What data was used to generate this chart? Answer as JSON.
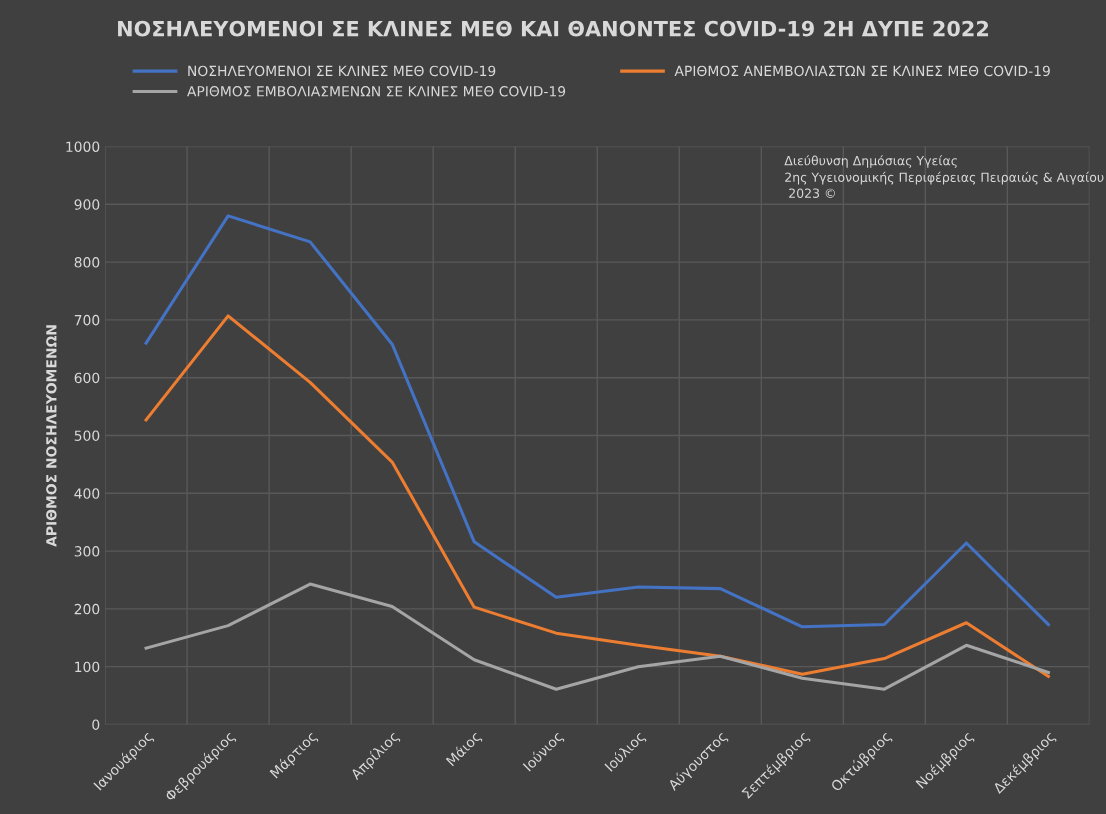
{
  "chart_data": {
    "type": "line",
    "title": "ΝΟΣΗΛΕΥΟΜΕΝΟΙ ΣΕ ΚΛΙΝΕΣ ΜΕΘ ΚΑΙ ΘΑΝΟΝΤΕΣ COVID-19 2Η ΔΥΠΕ 2022",
    "ylabel": "ΑΡΙΘΜΟΣ ΝΟΣΗΛΕΥΟΜΕΝΩΝ",
    "annotations": [
      "Διεύθυνση Δημόσιας Υγείας\n2ης Υγειονομικής Περιφέρειας Πειραιώς & Αιγαίου\n 2023 ©"
    ],
    "categories": [
      "Ιανουάριος",
      "Φεβρουάριος",
      "Μάρτιος",
      "Απρίλιος",
      "Μάιος",
      "Ιούνιος",
      "Ιούλιος",
      "Αύγουστος",
      "Σεπτέμβριος",
      "Οκτώβριος",
      "Νοέμβριος",
      "Δεκέμβριος"
    ],
    "series": [
      {
        "name": "ΝΟΣΗΛΕΥΟΜΕΝΟΙ ΣΕ ΚΛΙΝΕΣ ΜΕΘ COVID-19",
        "color": "#4472c4",
        "values": [
          660,
          880,
          835,
          658,
          316,
          220,
          238,
          235,
          169,
          173,
          314,
          173
        ]
      },
      {
        "name": "ΑΡΙΘΜΟΣ ΑΝΕΜΒΟΛΙΑΣΤΩΝ ΣΕ ΚΛΙΝΕΣ ΜΕΘ COVID-19",
        "color": "#ed7d31",
        "values": [
          527,
          707,
          592,
          454,
          203,
          158,
          137,
          118,
          87,
          114,
          176,
          83
        ]
      },
      {
        "name": "ΑΡΙΘΜΟΣ ΕΜΒΟΛΙΑΣΜΕΝΩΝ ΣΕ ΚΛΙΝΕΣ ΜΕΘ COVID-19",
        "color": "#a5a5a5",
        "values": [
          132,
          171,
          243,
          204,
          112,
          61,
          100,
          118,
          80,
          61,
          137,
          90
        ]
      }
    ],
    "ylim": [
      0,
      1000
    ],
    "yticks": [
      0,
      100,
      200,
      300,
      400,
      500,
      600,
      700,
      800,
      900,
      1000
    ],
    "grid": true,
    "legend": "top",
    "marker": "none",
    "line_style": "solid"
  }
}
